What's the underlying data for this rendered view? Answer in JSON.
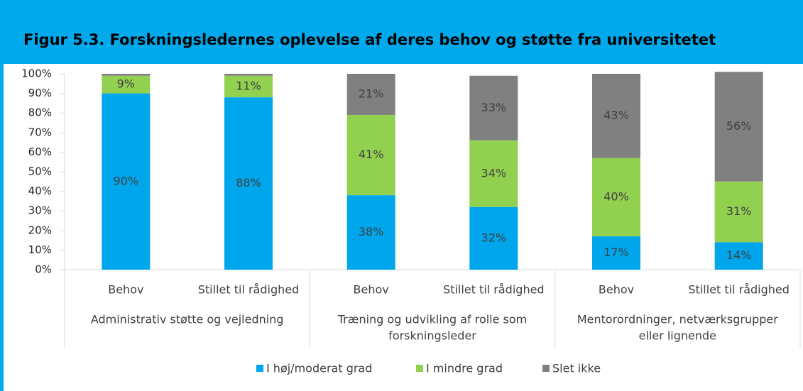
{
  "chart_data": {
    "type": "stacked_bar",
    "title": "Figur 5.3. Forskningsledernes oplevelse af deres behov og støtte fra universitetet",
    "categories": [
      "Behov",
      "Stillet til rådighed",
      "Behov",
      "Stillet til rådighed",
      "Behov",
      "Stillet til rådighed"
    ],
    "groups": [
      [
        "Administrativ støtte og vejledning"
      ],
      [
        "Træning og udvikling af rolle som",
        "forskningsleder"
      ],
      [
        "Mentorordninger, netværksgrupper",
        "eller lignende"
      ]
    ],
    "series": [
      {
        "name": "I høj/moderat grad",
        "color": "#00a6eb",
        "values": [
          90,
          88,
          38,
          32,
          17,
          14
        ],
        "value_labels": [
          "90%",
          "88%",
          "38%",
          "32%",
          "17%",
          "14%"
        ]
      },
      {
        "name": "I mindre grad",
        "color": "#92d050",
        "values": [
          9,
          11,
          41,
          34,
          40,
          31
        ],
        "value_labels": [
          "9%",
          "11%",
          "41%",
          "34%",
          "40%",
          "31%"
        ]
      },
      {
        "name": "Slet ikke",
        "color": "#808080",
        "values": [
          1,
          1,
          21,
          33,
          43,
          56
        ],
        "value_labels": [
          null,
          null,
          "21%",
          "33%",
          "43%",
          "56%"
        ]
      }
    ],
    "ylim": [
      0,
      100
    ],
    "yticks": [
      {
        "value": 0,
        "label": "0%"
      },
      {
        "value": 10,
        "label": "10%"
      },
      {
        "value": 20,
        "label": "20%"
      },
      {
        "value": 30,
        "label": "30%"
      },
      {
        "value": 40,
        "label": "40%"
      },
      {
        "value": 50,
        "label": "50%"
      },
      {
        "value": 60,
        "label": "60%"
      },
      {
        "value": 70,
        "label": "70%"
      },
      {
        "value": 80,
        "label": "80%"
      },
      {
        "value": 90,
        "label": "90%"
      },
      {
        "value": 100,
        "label": "100%"
      }
    ],
    "grid": false,
    "legend": "bottom"
  }
}
